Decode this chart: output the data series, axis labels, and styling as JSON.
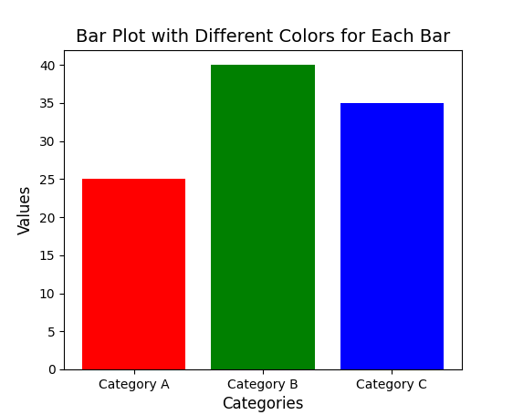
{
  "categories": [
    "Category A",
    "Category B",
    "Category C"
  ],
  "values": [
    25,
    40,
    35
  ],
  "bar_colors": [
    "red",
    "green",
    "blue"
  ],
  "title": "Bar Plot with Different Colors for Each Bar",
  "xlabel": "Categories",
  "ylabel": "Values",
  "ylim": [
    0,
    42
  ],
  "title_fontsize": 14,
  "label_fontsize": 12,
  "figsize": [
    5.62,
    4.55
  ],
  "dpi": 100
}
